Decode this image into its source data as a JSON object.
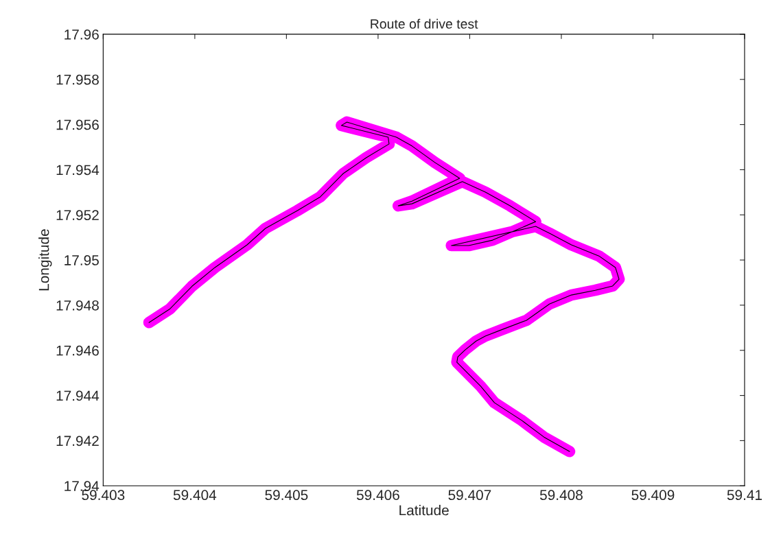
{
  "chart_data": {
    "type": "line",
    "title": "Route of drive test",
    "xlabel": "Latitude",
    "ylabel": "Longitude",
    "x": [
      59.4035,
      59.40373,
      59.40397,
      59.40422,
      59.40457,
      59.40477,
      59.40512,
      59.40537,
      59.40562,
      59.40587,
      59.40612,
      59.40611,
      59.4056,
      59.40566,
      59.4062,
      59.40637,
      59.40662,
      59.40689,
      59.40637,
      59.40622,
      59.40637,
      59.40692,
      59.40717,
      59.40744,
      59.40772,
      59.40725,
      59.40699,
      59.4068,
      59.40772,
      59.40787,
      59.40811,
      59.40841,
      59.40859,
      59.40863,
      59.40856,
      59.40837,
      59.40811,
      59.40787,
      59.40762,
      59.40736,
      59.40717,
      59.40707,
      59.40695,
      59.40687,
      59.40686,
      59.40712,
      59.40727,
      59.40757,
      59.40781,
      59.40809
    ],
    "series": [
      {
        "color": "#ff00ff",
        "values": [
          17.94723,
          17.94784,
          17.94884,
          17.94967,
          17.95067,
          17.9514,
          17.95219,
          17.9528,
          17.95383,
          17.95453,
          17.95514,
          17.95544,
          17.95596,
          17.95611,
          17.95544,
          17.95505,
          17.95432,
          17.95362,
          17.95261,
          17.9524,
          17.95249,
          17.95347,
          17.95301,
          17.9524,
          17.9517,
          17.95088,
          17.95064,
          17.95064,
          17.95149,
          17.95119,
          17.95067,
          17.95018,
          17.94967,
          17.94915,
          17.94885,
          17.94866,
          17.94845,
          17.94805,
          17.94733,
          17.94693,
          17.94663,
          17.94641,
          17.94602,
          17.94571,
          17.94547,
          17.94441,
          17.94368,
          17.94289,
          17.94216,
          17.94152
        ]
      },
      {
        "color": "#000000",
        "values": [
          17.94723,
          17.94784,
          17.94884,
          17.94967,
          17.95067,
          17.9514,
          17.95219,
          17.9528,
          17.95383,
          17.95453,
          17.95514,
          17.95544,
          17.95596,
          17.95611,
          17.95544,
          17.95505,
          17.95432,
          17.95362,
          17.95261,
          17.9524,
          17.95249,
          17.95347,
          17.95301,
          17.9524,
          17.9517,
          17.95088,
          17.95064,
          17.95064,
          17.95149,
          17.95119,
          17.95067,
          17.95018,
          17.94967,
          17.94915,
          17.94885,
          17.94866,
          17.94845,
          17.94805,
          17.94733,
          17.94693,
          17.94663,
          17.94641,
          17.94602,
          17.94571,
          17.94547,
          17.94441,
          17.94368,
          17.94289,
          17.94216,
          17.94152
        ]
      }
    ],
    "xlim": [
      59.403,
      59.41
    ],
    "xticks": [
      59.403,
      59.404,
      59.405,
      59.406,
      59.407,
      59.408,
      59.409,
      59.41
    ],
    "ylim": [
      17.94,
      17.96
    ],
    "yticks": [
      17.94,
      17.942,
      17.944,
      17.946,
      17.948,
      17.95,
      17.952,
      17.954,
      17.956,
      17.958,
      17.96
    ],
    "grid": false,
    "legend": false,
    "line_style": "solid"
  }
}
